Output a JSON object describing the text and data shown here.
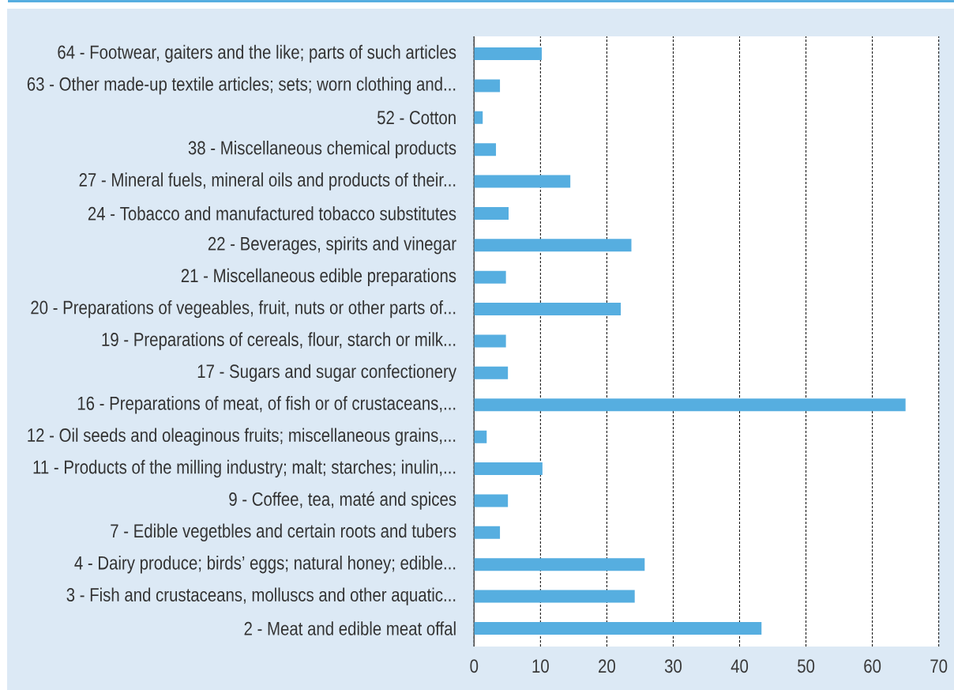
{
  "chart_data": {
    "type": "bar",
    "orientation": "horizontal",
    "categories": [
      "64 - Footwear, gaiters and the like; parts of such articles",
      "63 - Other made-up textile articles; sets; worn clothing and...",
      "52 - Cotton",
      "38 - Miscellaneous chemical products",
      "27 - Mineral fuels, mineral oils and products of their...",
      "24 - Tobacco and manufactured tobacco substitutes",
      "22 - Beverages, spirits and vinegar",
      "21 - Miscellaneous edible preparations",
      "20 - Preparations of vegeables, fruit, nuts or other parts of...",
      "19 - Preparations of cereals, flour, starch or milk...",
      "17 - Sugars and sugar confectionery",
      "16 - Preparations of meat, of fish or of crustaceans,...",
      "12 - Oil seeds and oleaginous fruits; miscellaneous grains,...",
      "11 - Products of the milling industry; malt; starches; inulin,...",
      "9 - Coffee, tea, maté and spices",
      "7 - Edible vegetbles and certain roots and tubers",
      "4 - Dairy produce; birds’ eggs; natural honey; edible...",
      "3 - Fish and crustaceans, molluscs and other aquatic...",
      "2 - Meat and edible meat offal"
    ],
    "values": [
      10.2,
      3.9,
      1.3,
      3.3,
      14.5,
      5.2,
      23.7,
      4.8,
      22.1,
      4.8,
      5.1,
      65.0,
      1.9,
      10.3,
      5.1,
      3.9,
      25.7,
      24.2,
      43.3
    ],
    "color": "#56aee0",
    "xlim": [
      0,
      70
    ],
    "xticks": [
      0,
      10,
      20,
      30,
      40,
      50,
      60,
      70
    ],
    "grid": "x"
  }
}
